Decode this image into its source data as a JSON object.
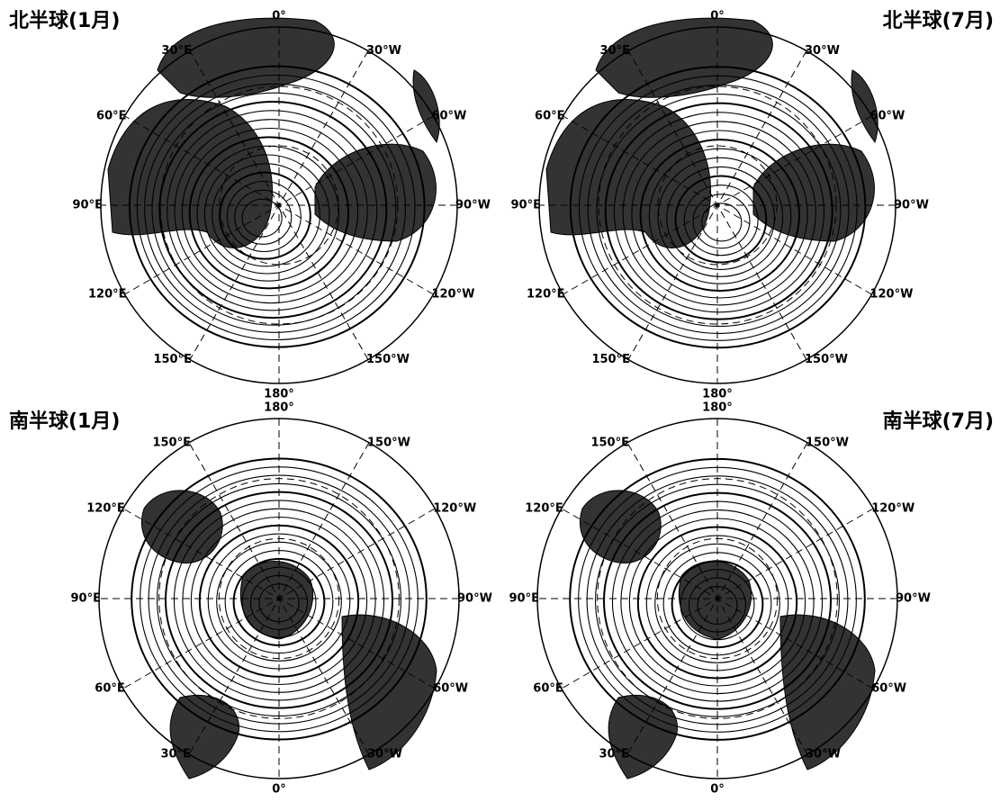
{
  "panels": [
    {
      "title": "北半球(1月)",
      "labels": [
        "0°",
        "30°W",
        "60°W",
        "90°W",
        "120°W",
        "150°W",
        "180°",
        "150°E",
        "120°E",
        "90°E",
        "60°E",
        "30°E"
      ]
    },
    {
      "title": "北半球(7月)",
      "labels": [
        "0°",
        "30°W",
        "60°W",
        "90°W",
        "120°W",
        "150°W",
        "180°",
        "150°E",
        "120°E",
        "90°E",
        "60°E",
        "30°E"
      ]
    },
    {
      "title": "南半球(1月)",
      "labels": [
        "180°",
        "150°W",
        "120°W",
        "90°W",
        "60°W",
        "30°W",
        "0°",
        "30°E",
        "60°E",
        "90°E",
        "120°E",
        "150°E"
      ]
    },
    {
      "title": "南半球(7月)",
      "labels": [
        "180°",
        "150°W",
        "120°W",
        "90°W",
        "60°W",
        "30°W",
        "0°",
        "30°E",
        "60°E",
        "90°E",
        "120°E",
        "150°E"
      ]
    }
  ]
}
